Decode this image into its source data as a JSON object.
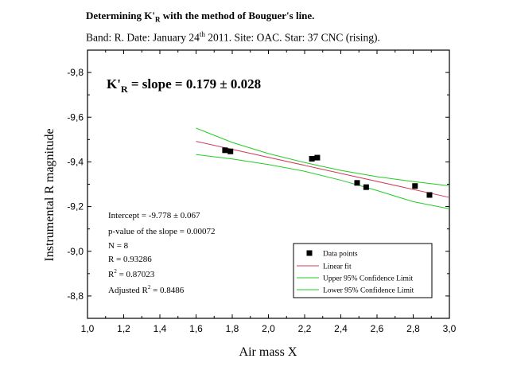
{
  "header": {
    "title_prefix": "Determining K'",
    "title_sub": "R",
    "title_suffix": " with the method of Bouguer's line.",
    "line2_prefix": "Band: R.  Date: January 24",
    "line2_sup": "th",
    "line2_suffix": " 2011.  Site: OAC.  Star: 37 CNC (rising)."
  },
  "chart_data": {
    "type": "scatter",
    "xlabel": "Air mass  X",
    "ylabel": "Instrumental  R  magnitude",
    "xlim": [
      1.0,
      3.0
    ],
    "ylim": [
      -8.7,
      -9.9
    ],
    "y_inverted": true,
    "xticks": [
      1.0,
      1.2,
      1.4,
      1.6,
      1.8,
      2.0,
      2.2,
      2.4,
      2.6,
      2.8,
      3.0
    ],
    "xtick_labels": [
      "1,0",
      "1,2",
      "1,4",
      "1,6",
      "1,8",
      "2,0",
      "2,2",
      "2,4",
      "2,6",
      "2,8",
      "3,0"
    ],
    "yticks": [
      -8.8,
      -9.0,
      -9.2,
      -9.4,
      -9.6,
      -9.8
    ],
    "ytick_labels": [
      "-8,8",
      "-9,0",
      "-9,2",
      "-9,4",
      "-9,6",
      "-9,8"
    ],
    "series": [
      {
        "name": "Data points",
        "kind": "points",
        "color": "#000000",
        "x": [
          1.76,
          1.79,
          2.24,
          2.27,
          2.49,
          2.54,
          2.81,
          2.89
        ],
        "y": [
          -9.452,
          -9.447,
          -9.414,
          -9.419,
          -9.306,
          -9.287,
          -9.292,
          -9.252
        ]
      },
      {
        "name": "Linear fit",
        "kind": "line",
        "color": "#d03a5a",
        "x": [
          1.6,
          3.0
        ],
        "y": [
          -9.492,
          -9.241
        ]
      },
      {
        "name": "Upper 95% Confidence Limit",
        "kind": "line",
        "color": "#22cc22",
        "x": [
          1.6,
          1.8,
          2.0,
          2.2,
          2.4,
          2.6,
          2.8,
          3.0
        ],
        "y": [
          -9.551,
          -9.487,
          -9.437,
          -9.397,
          -9.362,
          -9.334,
          -9.312,
          -9.293
        ]
      },
      {
        "name": "Lower 95% Confidence Limit",
        "kind": "line",
        "color": "#22cc22",
        "x": [
          1.6,
          1.8,
          2.0,
          2.2,
          2.4,
          2.6,
          2.8,
          3.0
        ],
        "y": [
          -9.433,
          -9.413,
          -9.388,
          -9.358,
          -9.318,
          -9.272,
          -9.222,
          -9.19
        ]
      }
    ],
    "annotation_main": {
      "prefix": "K'",
      "sub": "R",
      "suffix": " = slope = 0.179 ± 0.028"
    },
    "stats": [
      {
        "text": "Intercept = -9.778 ± 0.067"
      },
      {
        "text": "p-value of the slope = 0.00072"
      },
      {
        "text": "N = 8"
      },
      {
        "text": "R = 0.93286"
      },
      {
        "pre": "R",
        "sup": "2",
        "post": " = 0.87023"
      },
      {
        "pre": "Adjusted R",
        "sup": "2",
        "post": " = 0.8486"
      }
    ],
    "legend_position": "bottom-right"
  }
}
